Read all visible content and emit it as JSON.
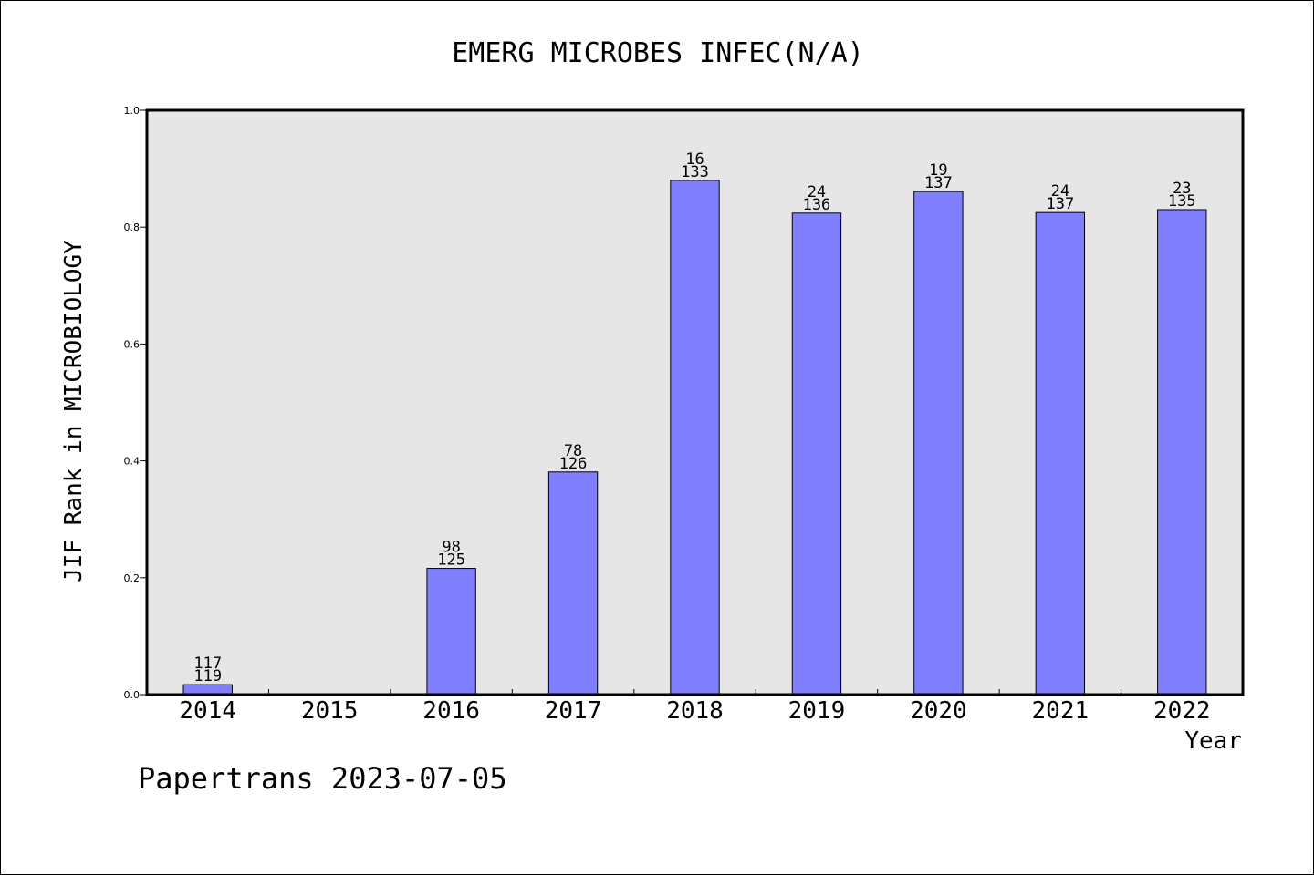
{
  "colors": {
    "plot_background": "#e6e6e6",
    "bar_fill": "#8080ff",
    "bar_stroke": "#000000",
    "axis": "#000000"
  },
  "chart_data": {
    "type": "bar",
    "title": "EMERG MICROBES INFEC(N/A)",
    "xlabel": "Year",
    "ylabel": "JIF Rank in MICROBIOLOGY",
    "ylim": [
      0,
      1.0
    ],
    "yticks": [
      "0.0",
      "0.2",
      "0.4",
      "0.6",
      "0.8",
      "1.0"
    ],
    "categories": [
      "2014",
      "2015",
      "2016",
      "2017",
      "2018",
      "2019",
      "2020",
      "2021",
      "2022"
    ],
    "series": [
      {
        "values": [
          0.017,
          null,
          0.216,
          0.381,
          0.88,
          0.824,
          0.861,
          0.825,
          0.83
        ],
        "rank_labels": [
          "117",
          "",
          "98",
          "78",
          "16",
          "24",
          "19",
          "24",
          "23"
        ],
        "total_labels": [
          "119",
          "",
          "125",
          "126",
          "133",
          "136",
          "137",
          "137",
          "135"
        ]
      }
    ],
    "grid": false,
    "legend": "none"
  },
  "footer": {
    "credit": "Papertrans 2023-07-05"
  }
}
